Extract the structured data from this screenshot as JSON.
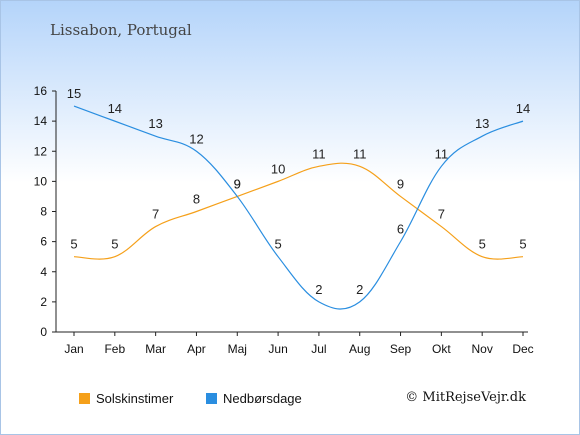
{
  "title": "Lissabon, Portugal",
  "copyright": "© MitRejseVejr.dk",
  "chart_data": {
    "type": "line",
    "categories": [
      "Jan",
      "Feb",
      "Mar",
      "Apr",
      "Maj",
      "Jun",
      "Jul",
      "Aug",
      "Sep",
      "Okt",
      "Nov",
      "Dec"
    ],
    "ylim": [
      0,
      16
    ],
    "yticks": [
      0,
      2,
      4,
      6,
      8,
      10,
      12,
      14,
      16
    ],
    "grid": false,
    "legend_position": "bottom-left",
    "series": [
      {
        "name": "Solskinstimer",
        "color": "#f5a01a",
        "values": [
          5,
          5,
          7,
          8,
          9,
          10,
          11,
          11,
          9,
          7,
          5,
          5
        ]
      },
      {
        "name": "Nedbørsdage",
        "color": "#2a8ee0",
        "values": [
          15,
          14,
          13,
          12,
          9,
          5,
          2,
          2,
          6,
          11,
          13,
          14
        ]
      }
    ]
  }
}
